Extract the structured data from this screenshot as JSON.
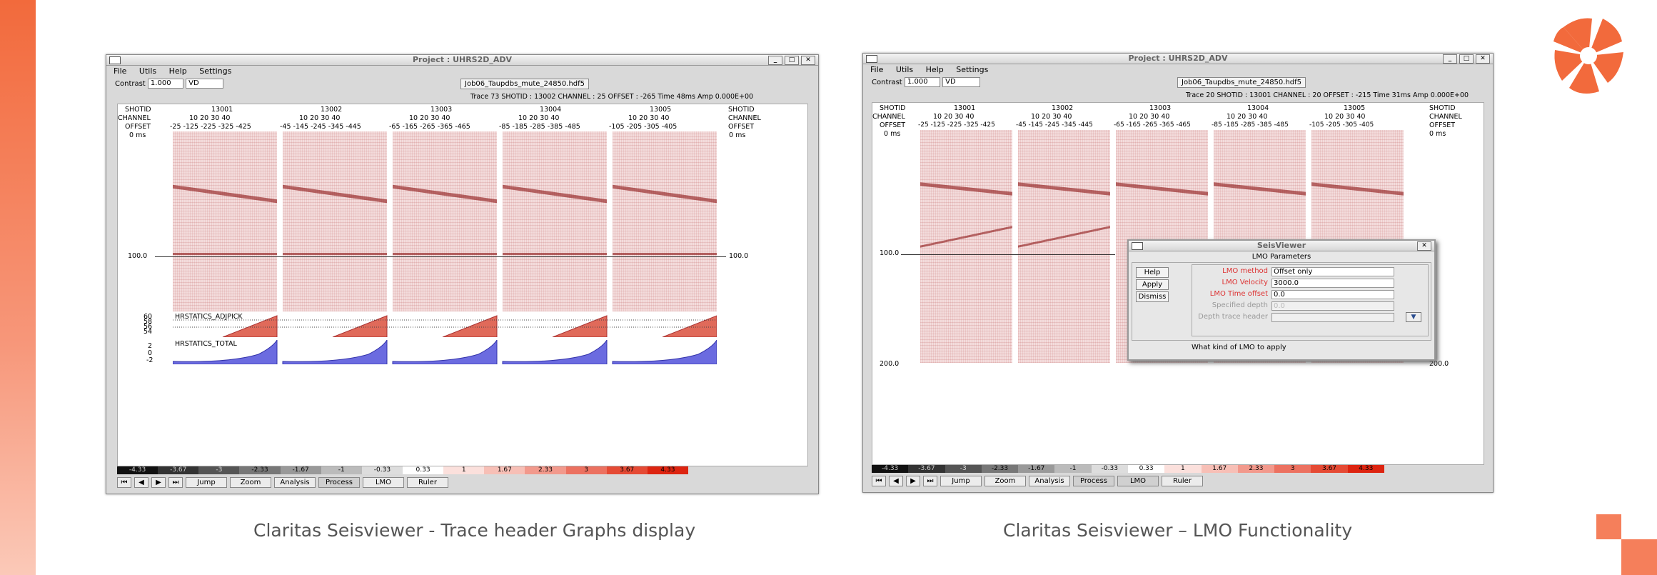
{
  "captions": {
    "left": "Claritas Seisviewer - Trace header Graphs display",
    "right": "Claritas Seisviewer – LMO Functionality"
  },
  "window": {
    "title": "Project : UHRS2D_ADV",
    "menu": [
      "File",
      "Utils",
      "Help",
      "Settings"
    ],
    "contrast_label": "Contrast",
    "contrast_value": "1.000",
    "mode_value": "VD",
    "file": "Job06_Taupdbs_mute_24850.hdf5",
    "header_labels": [
      "SHOTID",
      "CHANNEL",
      "OFFSET"
    ],
    "shotids": [
      "13001",
      "13002",
      "13003",
      "13004",
      "13005"
    ],
    "channels": "10  20  30  40",
    "buttons": [
      "Jump",
      "Zoom",
      "Analysis",
      "Process",
      "LMO",
      "Ruler"
    ],
    "colorbar": [
      "-4.33",
      "-3.67",
      "-3",
      "-2.33",
      "-1.67",
      "-1",
      "-0.33",
      "0.33",
      "1",
      "1.67",
      "2.33",
      "3",
      "3.67",
      "4.33"
    ],
    "colors": {
      "accent": "#f26a3c",
      "panel": "#f3dcdc",
      "graph_red": "#d9534f",
      "graph_blue": "#5b5bd6"
    }
  },
  "left": {
    "trace_info": "Trace 73 SHOTID : 13002 CHANNEL : 25 OFFSET : -265 Time    48ms Amp  0.000E+00",
    "offsets": [
      "-25  -125  -225  -325  -425",
      "-45  -145  -245  -345  -445",
      "-65  -165  -265  -365  -465",
      "-85  -185  -285  -385  -485",
      "-105  -205  -305  -405"
    ],
    "time_top": "0 ms",
    "time_mid": "100.0",
    "graph1_label": "HRSTATICS_ADJPICK",
    "graph1_ticks": [
      "60",
      "58",
      "56",
      "54"
    ],
    "graph2_label": "HRSTATICS_TOTAL",
    "graph2_ticks": [
      "2",
      "0",
      "-2"
    ]
  },
  "right": {
    "trace_info": "Trace 20 SHOTID : 13001 CHANNEL : 20 OFFSET : -215 Time    31ms Amp  0.000E+00",
    "offsets": [
      "-25  -125  -225  -325  -425",
      "-45  -145  -245  -345  -445",
      "-65  -165  -265  -365  -465",
      "-85  -185  -285  -385  -485",
      "-105  -205  -305  -405"
    ],
    "time_top": "0 ms",
    "time_mid": "100.0",
    "time_bottom": "200.0",
    "dialog": {
      "title": "SeisViewer",
      "heading": "LMO Parameters",
      "buttons": [
        "Help",
        "Apply",
        "Dismiss"
      ],
      "params": [
        {
          "label": "LMO method",
          "value": "Offset only"
        },
        {
          "label": "LMO Velocity",
          "value": "3000.0"
        },
        {
          "label": "LMO Time offset",
          "value": "0.0"
        },
        {
          "label": "Specified depth",
          "value": "0.0"
        },
        {
          "label": "Depth trace header",
          "value": ""
        }
      ],
      "hint": "What kind of LMO to apply"
    }
  }
}
